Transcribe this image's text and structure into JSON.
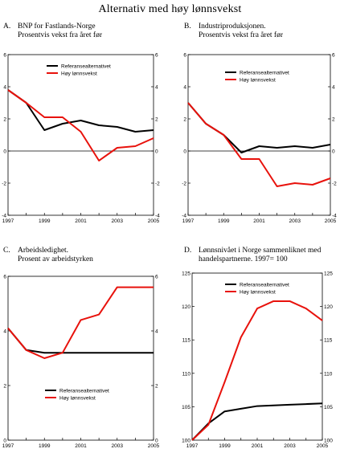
{
  "title": "Alternativ med høy lønnsvekst",
  "colors": {
    "base": "#000000",
    "high": "#e8120c",
    "axis": "#000000"
  },
  "panels": [
    {
      "letter": "A.",
      "title_lines": [
        "BNP for Fastlands-Norge",
        "Prosentvis vekst fra året før"
      ]
    },
    {
      "letter": "B.",
      "title_lines": [
        "Industriproduksjonen.",
        "Prosentvis vekst fra året før"
      ]
    },
    {
      "letter": "C.",
      "title_lines": [
        "Arbeidsledighet.",
        "Prosent av arbeidstyrken"
      ]
    },
    {
      "letter": "D.",
      "title_lines": [
        "Lønnsnivået i Norge sammenliknet med",
        "handelspartnerne. 1997= 100"
      ]
    }
  ],
  "chart_data": [
    {
      "type": "line",
      "x": [
        1997,
        1998,
        1999,
        2000,
        2001,
        2002,
        2003,
        2004,
        2005
      ],
      "xticks": [
        "1997",
        "1999",
        "2001",
        "2003",
        "2005"
      ],
      "ylim": [
        -4,
        6
      ],
      "yticks": [
        "-4",
        "-2",
        "0",
        "2",
        "4",
        "6"
      ],
      "zero_line": true,
      "legend_position": "top-center",
      "series": [
        {
          "name": "Referansealternativet",
          "color": "#000000",
          "values": [
            3.8,
            3.0,
            1.3,
            1.7,
            1.9,
            1.6,
            1.5,
            1.2,
            1.3
          ]
        },
        {
          "name": "Høy lønnsvekst",
          "color": "#e8120c",
          "values": [
            3.8,
            3.0,
            2.1,
            2.1,
            1.2,
            -0.6,
            0.2,
            0.3,
            0.8
          ]
        }
      ]
    },
    {
      "type": "line",
      "x": [
        1997,
        1998,
        1999,
        2000,
        2001,
        2002,
        2003,
        2004,
        2005
      ],
      "xticks": [
        "1997",
        "1999",
        "2001",
        "2003",
        "2005"
      ],
      "ylim": [
        -4,
        6
      ],
      "yticks": [
        "-4",
        "-2",
        "0",
        "2",
        "4",
        "6"
      ],
      "zero_line": true,
      "legend_position": "top-center",
      "series": [
        {
          "name": "Referansealternativet",
          "color": "#000000",
          "values": [
            3.0,
            1.7,
            1.0,
            -0.1,
            0.3,
            0.2,
            0.3,
            0.2,
            0.4
          ]
        },
        {
          "name": "Høy lønnsvekst",
          "color": "#e8120c",
          "values": [
            3.0,
            1.7,
            1.0,
            -0.5,
            -0.5,
            -2.2,
            -2.0,
            -2.1,
            -1.7
          ]
        }
      ]
    },
    {
      "type": "line",
      "x": [
        1997,
        1998,
        1999,
        2000,
        2001,
        2002,
        2003,
        2004,
        2005
      ],
      "xticks": [
        "1997",
        "1999",
        "2001",
        "2003",
        "2005"
      ],
      "ylim": [
        0,
        6
      ],
      "yticks": [
        "0",
        "2",
        "4",
        "6"
      ],
      "zero_line": false,
      "legend_position": "bottom-center",
      "series": [
        {
          "name": "Referansealternativet",
          "color": "#000000",
          "values": [
            4.1,
            3.3,
            3.2,
            3.2,
            3.2,
            3.2,
            3.2,
            3.2,
            3.2
          ]
        },
        {
          "name": "Høy lønnsvekst",
          "color": "#e8120c",
          "values": [
            4.1,
            3.3,
            3.0,
            3.2,
            4.4,
            4.6,
            5.6,
            5.6,
            5.6
          ]
        }
      ]
    },
    {
      "type": "line",
      "x": [
        1997,
        1998,
        1999,
        2000,
        2001,
        2002,
        2003,
        2004,
        2005
      ],
      "xticks": [
        "1997",
        "1999",
        "2001",
        "2003",
        "2005"
      ],
      "ylim": [
        100,
        125
      ],
      "yticks": [
        "100",
        "105",
        "110",
        "115",
        "120",
        "125"
      ],
      "zero_line": false,
      "legend_position": "top-center",
      "series": [
        {
          "name": "Referansealternativet",
          "color": "#000000",
          "values": [
            100.0,
            102.5,
            104.3,
            104.7,
            105.1,
            105.2,
            105.3,
            105.4,
            105.5
          ]
        },
        {
          "name": "Høy lønnsvekst",
          "color": "#e8120c",
          "values": [
            100.0,
            102.3,
            108.7,
            115.4,
            119.7,
            120.8,
            120.8,
            119.7,
            117.9
          ]
        }
      ]
    }
  ]
}
